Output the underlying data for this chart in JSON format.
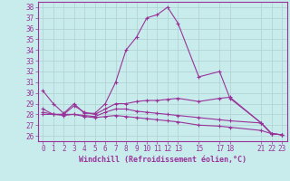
{
  "xlabel": "Windchill (Refroidissement éolien,°C)",
  "bg_color": "#c8ecec",
  "grid_color": "#b0d0d0",
  "line_color": "#993399",
  "x_ticks": [
    0,
    1,
    2,
    3,
    4,
    5,
    6,
    7,
    8,
    9,
    10,
    11,
    12,
    13,
    15,
    17,
    18,
    21,
    22,
    23
  ],
  "x_tick_labels": [
    "0",
    "1",
    "2",
    "3",
    "4",
    "5",
    "6",
    "7",
    "8",
    "9",
    "10",
    "11",
    "12",
    "13",
    "15",
    "17",
    "18",
    "21",
    "22",
    "23"
  ],
  "ylim": [
    25.5,
    38.5
  ],
  "xlim": [
    -0.5,
    23.5
  ],
  "yticks": [
    26,
    27,
    28,
    29,
    30,
    31,
    32,
    33,
    34,
    35,
    36,
    37,
    38
  ],
  "series": [
    {
      "x": [
        0,
        1,
        2,
        3,
        4,
        5,
        6,
        7,
        8,
        9,
        10,
        11,
        12,
        13,
        15,
        17,
        18,
        21,
        22,
        23
      ],
      "y": [
        30.2,
        29.0,
        28.1,
        29.0,
        28.1,
        28.1,
        29.0,
        31.0,
        34.0,
        35.2,
        37.0,
        37.3,
        38.0,
        36.5,
        31.5,
        32.0,
        29.5,
        27.2,
        26.2,
        26.1
      ]
    },
    {
      "x": [
        0,
        1,
        2,
        3,
        4,
        5,
        6,
        7,
        8,
        9,
        10,
        11,
        12,
        13,
        15,
        17,
        18,
        21,
        22,
        23
      ],
      "y": [
        28.5,
        28.0,
        28.0,
        28.8,
        28.2,
        28.0,
        28.5,
        29.0,
        29.0,
        29.2,
        29.3,
        29.3,
        29.4,
        29.5,
        29.2,
        29.5,
        29.6,
        27.2,
        26.2,
        26.1
      ]
    },
    {
      "x": [
        0,
        1,
        2,
        3,
        4,
        5,
        6,
        7,
        8,
        9,
        10,
        11,
        12,
        13,
        15,
        17,
        18,
        21,
        22,
        23
      ],
      "y": [
        28.2,
        28.0,
        28.0,
        28.0,
        27.9,
        27.8,
        28.2,
        28.5,
        28.5,
        28.3,
        28.2,
        28.1,
        28.0,
        27.9,
        27.7,
        27.5,
        27.4,
        27.2,
        26.2,
        26.1
      ]
    },
    {
      "x": [
        0,
        1,
        2,
        3,
        4,
        5,
        6,
        7,
        8,
        9,
        10,
        11,
        12,
        13,
        15,
        17,
        18,
        21,
        22,
        23
      ],
      "y": [
        28.0,
        28.0,
        27.9,
        28.0,
        27.8,
        27.7,
        27.8,
        27.9,
        27.8,
        27.7,
        27.6,
        27.5,
        27.4,
        27.3,
        27.0,
        26.9,
        26.8,
        26.5,
        26.2,
        26.1
      ]
    }
  ]
}
